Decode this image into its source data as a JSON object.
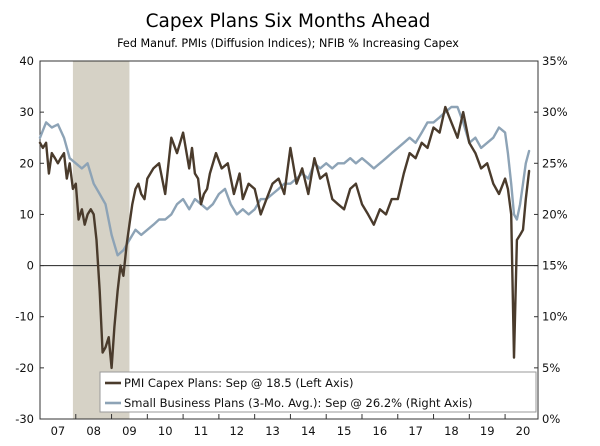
{
  "chart_data": {
    "type": "line",
    "title": "Capex Plans Six Months Ahead",
    "subtitle": "Fed Manuf. PMIs (Diffusion Indices); NFIB % Increasing Capex",
    "x_tick_labels": [
      "07",
      "08",
      "09",
      "10",
      "11",
      "12",
      "13",
      "14",
      "15",
      "16",
      "17",
      "18",
      "19",
      "20"
    ],
    "x_range": [
      2007.0,
      2020.92
    ],
    "left_axis": {
      "range": [
        -30,
        40
      ],
      "ticks": [
        -30,
        -20,
        -10,
        0,
        10,
        20,
        30,
        40
      ],
      "tick_labels": [
        "-30",
        "-20",
        "-10",
        "0",
        "10",
        "20",
        "30",
        "40"
      ]
    },
    "right_axis": {
      "range": [
        0,
        35
      ],
      "ticks": [
        0,
        5,
        10,
        15,
        20,
        25,
        30,
        35
      ],
      "tick_labels": [
        "0%",
        "5%",
        "10%",
        "15%",
        "20%",
        "25%",
        "30%",
        "35%"
      ]
    },
    "recession": {
      "start": 2007.92,
      "end": 2009.5
    },
    "reference_line": 0,
    "legend": {
      "placement": "bottom-center",
      "entries": [
        {
          "label": "PMI Capex Plans: Sep @ 18.5  (Left Axis)",
          "color": "#4a3b2c"
        },
        {
          "label": "Small Business Plans (3-Mo. Avg.): Sep @ 26.2% (Right Axis)",
          "color": "#8da3b6"
        }
      ]
    },
    "series": [
      {
        "name": "PMI Capex Plans",
        "axis": "left",
        "color": "#4a3b2c",
        "x": [
          2007.0,
          2007.08,
          2007.17,
          2007.25,
          2007.33,
          2007.42,
          2007.5,
          2007.58,
          2007.67,
          2007.75,
          2007.83,
          2007.92,
          2008.0,
          2008.08,
          2008.17,
          2008.25,
          2008.33,
          2008.42,
          2008.5,
          2008.58,
          2008.67,
          2008.75,
          2008.83,
          2008.92,
          2009.0,
          2009.08,
          2009.17,
          2009.25,
          2009.33,
          2009.42,
          2009.5,
          2009.58,
          2009.67,
          2009.75,
          2009.83,
          2009.92,
          2010.0,
          2010.17,
          2010.33,
          2010.5,
          2010.67,
          2010.83,
          2011.0,
          2011.17,
          2011.25,
          2011.33,
          2011.42,
          2011.5,
          2011.58,
          2011.67,
          2011.75,
          2011.92,
          2012.08,
          2012.25,
          2012.42,
          2012.58,
          2012.67,
          2012.83,
          2013.0,
          2013.17,
          2013.33,
          2013.5,
          2013.67,
          2013.83,
          2014.0,
          2014.17,
          2014.33,
          2014.5,
          2014.67,
          2014.83,
          2015.0,
          2015.17,
          2015.33,
          2015.5,
          2015.67,
          2015.83,
          2016.0,
          2016.17,
          2016.33,
          2016.5,
          2016.67,
          2016.83,
          2017.0,
          2017.17,
          2017.33,
          2017.5,
          2017.67,
          2017.83,
          2018.0,
          2018.17,
          2018.33,
          2018.5,
          2018.67,
          2018.83,
          2019.0,
          2019.17,
          2019.33,
          2019.5,
          2019.67,
          2019.83,
          2020.0,
          2020.08,
          2020.17,
          2020.25,
          2020.33,
          2020.42,
          2020.5,
          2020.58,
          2020.67
        ],
        "values": [
          24,
          23,
          24,
          18,
          22,
          21,
          20,
          21,
          22,
          17,
          20,
          15,
          16,
          9,
          11,
          8,
          10,
          11,
          10,
          5,
          -5,
          -17,
          -16,
          -14,
          -20,
          -12,
          -5,
          0,
          -2,
          4,
          8,
          12,
          15,
          16,
          14,
          13,
          17,
          19,
          20,
          14,
          25,
          22,
          26,
          19,
          23,
          18,
          17,
          12,
          14,
          15,
          18,
          22,
          19,
          20,
          14,
          18,
          13,
          16,
          15,
          10,
          13,
          16,
          17,
          14,
          23,
          16,
          19,
          14,
          21,
          17,
          18,
          13,
          12,
          11,
          15,
          16,
          12,
          10,
          8,
          11,
          10,
          13,
          13,
          18,
          22,
          21,
          24,
          23,
          27,
          26,
          31,
          28,
          25,
          30,
          24,
          22,
          19,
          20,
          16,
          14,
          17,
          15,
          10,
          -18,
          5,
          6,
          7,
          13,
          18.5
        ]
      },
      {
        "name": "Small Business Plans (3-Mo. Avg.)",
        "axis": "right",
        "color": "#8da3b6",
        "x": [
          2007.0,
          2007.17,
          2007.33,
          2007.5,
          2007.67,
          2007.83,
          2008.0,
          2008.17,
          2008.33,
          2008.5,
          2008.67,
          2008.83,
          2009.0,
          2009.17,
          2009.33,
          2009.5,
          2009.67,
          2009.83,
          2010.0,
          2010.17,
          2010.33,
          2010.5,
          2010.67,
          2010.83,
          2011.0,
          2011.17,
          2011.33,
          2011.5,
          2011.67,
          2011.83,
          2012.0,
          2012.17,
          2012.33,
          2012.5,
          2012.67,
          2012.83,
          2013.0,
          2013.17,
          2013.33,
          2013.5,
          2013.67,
          2013.83,
          2014.0,
          2014.17,
          2014.33,
          2014.5,
          2014.67,
          2014.83,
          2015.0,
          2015.17,
          2015.33,
          2015.5,
          2015.67,
          2015.83,
          2016.0,
          2016.17,
          2016.33,
          2016.5,
          2016.67,
          2016.83,
          2017.0,
          2017.17,
          2017.33,
          2017.5,
          2017.67,
          2017.83,
          2018.0,
          2018.17,
          2018.33,
          2018.5,
          2018.67,
          2018.83,
          2019.0,
          2019.17,
          2019.33,
          2019.5,
          2019.67,
          2019.83,
          2020.0,
          2020.08,
          2020.17,
          2020.25,
          2020.33,
          2020.42,
          2020.5,
          2020.58,
          2020.67
        ],
        "values": [
          27.5,
          29,
          28.5,
          28.8,
          27.5,
          25.5,
          25,
          24.5,
          25,
          23,
          22,
          21,
          18,
          16,
          16.5,
          17.5,
          18.5,
          18,
          18.5,
          19,
          19.5,
          19.5,
          20,
          21,
          21.5,
          20.5,
          21.5,
          21,
          20.5,
          21,
          22,
          22.5,
          21,
          20,
          20.5,
          20,
          20.5,
          21.5,
          21.5,
          22,
          22.5,
          23,
          23,
          23.5,
          24,
          23.5,
          25,
          24.5,
          25,
          24.5,
          25,
          25,
          25.5,
          25,
          25.5,
          25,
          24.5,
          25,
          25.5,
          26,
          26.5,
          27,
          27.5,
          27,
          28,
          29,
          29,
          29.5,
          30,
          30.5,
          30.5,
          29,
          27,
          27.5,
          26.5,
          27,
          27.5,
          28.5,
          28,
          26,
          23,
          20,
          19.5,
          21,
          23,
          25,
          26.2
        ]
      }
    ]
  }
}
